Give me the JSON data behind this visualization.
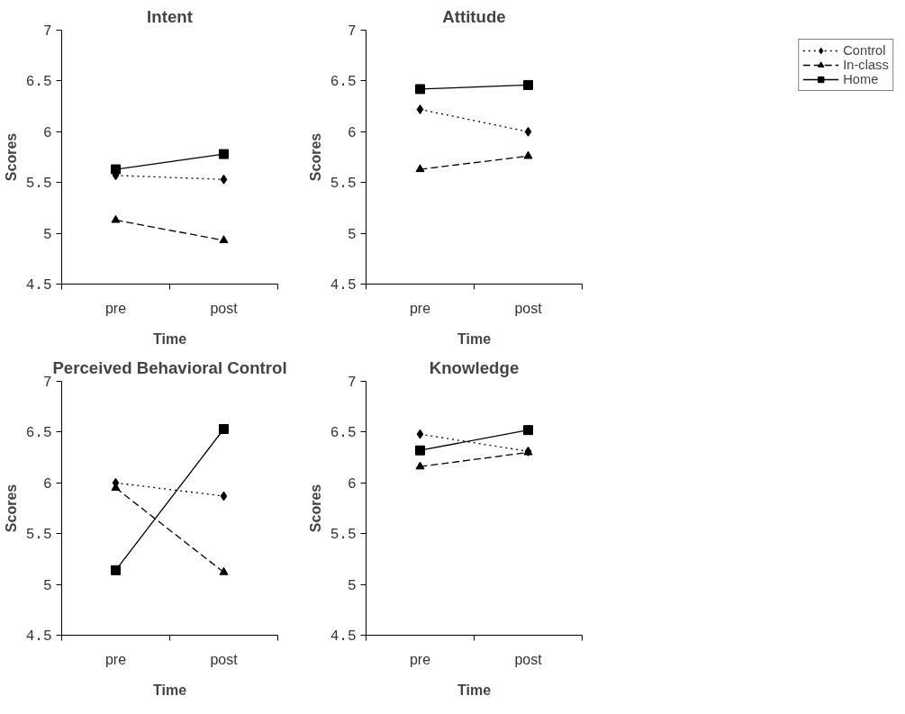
{
  "chart_data": [
    {
      "type": "line",
      "title": "Intent",
      "xlabel": "Time",
      "ylabel": "Scores",
      "categories": [
        "pre",
        "post"
      ],
      "ylim": [
        4.5,
        7
      ],
      "yticks": [
        4.5,
        5,
        5.5,
        6,
        6.5,
        7
      ],
      "grid": false,
      "series": [
        {
          "color": "#000000",
          "marker": "diamond",
          "line_style": "dotted",
          "values": [
            5.57,
            5.53
          ]
        },
        {
          "color": "#000000",
          "marker": "triangle",
          "line_style": "dashed",
          "values": [
            5.13,
            4.93
          ]
        },
        {
          "color": "#000000",
          "marker": "square",
          "line_style": "solid",
          "values": [
            5.63,
            5.78
          ]
        }
      ]
    },
    {
      "type": "line",
      "title": "Attitude",
      "xlabel": "Time",
      "ylabel": "Scores",
      "categories": [
        "pre",
        "post"
      ],
      "ylim": [
        4.5,
        7
      ],
      "yticks": [
        4.5,
        5,
        5.5,
        6,
        6.5,
        7
      ],
      "grid": false,
      "legend": "top right",
      "series": [
        {
          "name": "Control",
          "color": "#000000",
          "marker": "diamond",
          "line_style": "dotted",
          "values": [
            6.22,
            6.0
          ]
        },
        {
          "name": "In-class",
          "color": "#000000",
          "marker": "triangle",
          "line_style": "dashed",
          "values": [
            5.63,
            5.76
          ]
        },
        {
          "name": "Home",
          "color": "#000000",
          "marker": "square",
          "line_style": "solid",
          "values": [
            6.42,
            6.46
          ]
        }
      ]
    },
    {
      "type": "line",
      "title": "Perceived Behavioral Control",
      "xlabel": "Time",
      "ylabel": "Scores",
      "categories": [
        "pre",
        "post"
      ],
      "ylim": [
        4.5,
        7
      ],
      "yticks": [
        4.5,
        5,
        5.5,
        6,
        6.5,
        7
      ],
      "grid": false,
      "series": [
        {
          "color": "#000000",
          "marker": "diamond",
          "line_style": "dotted",
          "values": [
            6.0,
            5.87
          ]
        },
        {
          "color": "#000000",
          "marker": "triangle",
          "line_style": "dashed",
          "values": [
            5.95,
            5.12
          ]
        },
        {
          "color": "#000000",
          "marker": "square",
          "line_style": "solid",
          "values": [
            5.14,
            6.53
          ]
        }
      ]
    },
    {
      "type": "line",
      "title": "Knowledge",
      "xlabel": "Time",
      "ylabel": "Scores",
      "categories": [
        "pre",
        "post"
      ],
      "ylim": [
        4.5,
        7
      ],
      "yticks": [
        4.5,
        5,
        5.5,
        6,
        6.5,
        7
      ],
      "grid": false,
      "series": [
        {
          "color": "#000000",
          "marker": "diamond",
          "line_style": "dotted",
          "values": [
            6.48,
            6.31
          ]
        },
        {
          "color": "#000000",
          "marker": "triangle",
          "line_style": "dashed",
          "values": [
            6.16,
            6.3
          ]
        },
        {
          "color": "#000000",
          "marker": "square",
          "line_style": "solid",
          "values": [
            6.32,
            6.52
          ]
        }
      ]
    }
  ]
}
